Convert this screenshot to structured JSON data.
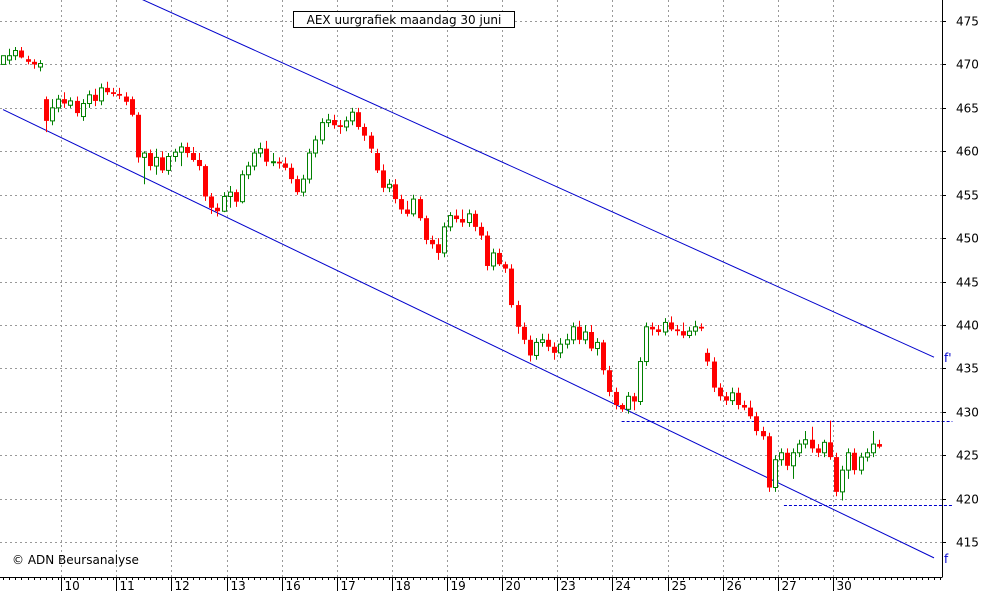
{
  "chart_data": {
    "type": "candlestick",
    "title": "AEX uurgrafiek maandag 30 juni",
    "copyright": "© ADN Beursanalyse",
    "ylim": [
      411,
      477
    ],
    "y_ticks": [
      415,
      420,
      425,
      430,
      435,
      440,
      445,
      450,
      455,
      460,
      465,
      470,
      475
    ],
    "x_ticks": [
      {
        "label": "10",
        "x": 9.5
      },
      {
        "label": "11",
        "x": 18.5
      },
      {
        "label": "12",
        "x": 27.5
      },
      {
        "label": "13",
        "x": 36.5
      },
      {
        "label": "16",
        "x": 45.5
      },
      {
        "label": "17",
        "x": 54.5
      },
      {
        "label": "18",
        "x": 63.5
      },
      {
        "label": "19",
        "x": 72.5
      },
      {
        "label": "20",
        "x": 81.5
      },
      {
        "label": "23",
        "x": 90.5
      },
      {
        "label": "24",
        "x": 99.5
      },
      {
        "label": "25",
        "x": 108.5
      },
      {
        "label": "26",
        "x": 117.5
      },
      {
        "label": "27",
        "x": 126.5
      },
      {
        "label": "30",
        "x": 135.5
      }
    ],
    "grid": true,
    "candles": [
      [
        470,
        471,
        470,
        471
      ],
      [
        470.5,
        471.8,
        470,
        471
      ],
      [
        471,
        472,
        470.5,
        471.6
      ],
      [
        471.6,
        472,
        470.7,
        470.8
      ],
      [
        470.6,
        471,
        470,
        470.3
      ],
      [
        470.3,
        470.6,
        469.5,
        470
      ],
      [
        469.7,
        470.5,
        469.2,
        470.1
      ],
      [
        466,
        466.3,
        462.2,
        463.5
      ],
      [
        463.5,
        466,
        463,
        465
      ],
      [
        465,
        466.5,
        464.5,
        466
      ],
      [
        466,
        466.8,
        465,
        465.5
      ],
      [
        465.3,
        466.2,
        465,
        465.8
      ],
      [
        465.8,
        466.3,
        464,
        464.4
      ],
      [
        464,
        466,
        463.5,
        465.5
      ],
      [
        465.5,
        467,
        465,
        466.5
      ],
      [
        466.5,
        467.2,
        465.2,
        465.8
      ],
      [
        465.8,
        467.8,
        465.3,
        467.3
      ],
      [
        467.3,
        468,
        466.5,
        466.8
      ],
      [
        466.8,
        467.3,
        466.3,
        466.6
      ],
      [
        466.6,
        467.3,
        466,
        466.4
      ],
      [
        466.3,
        466.8,
        465.3,
        465.7
      ],
      [
        466,
        466.3,
        464,
        464.2
      ],
      [
        464.2,
        464.5,
        458.7,
        459.3
      ],
      [
        459.3,
        460,
        456.2,
        459.8
      ],
      [
        459.8,
        460.2,
        457.8,
        458.3
      ],
      [
        458.3,
        460.3,
        457.3,
        459.3
      ],
      [
        459.3,
        460,
        457.5,
        457.8
      ],
      [
        457.8,
        459.8,
        457.3,
        459.4
      ],
      [
        459.4,
        460.3,
        458.8,
        459.9
      ],
      [
        459.9,
        461,
        458.3,
        460.5
      ],
      [
        460.5,
        461,
        459.3,
        459.8
      ],
      [
        459.8,
        460.5,
        458.8,
        459
      ],
      [
        459,
        459.8,
        457.8,
        458.3
      ],
      [
        458.3,
        458.5,
        454.3,
        454.8
      ],
      [
        454.8,
        455.2,
        452.8,
        453.5
      ],
      [
        453.5,
        454,
        452.5,
        453.1
      ],
      [
        453.1,
        455.3,
        453,
        454.8
      ],
      [
        454.8,
        456,
        453.5,
        455.3
      ],
      [
        455.3,
        455.6,
        453.6,
        454.2
      ],
      [
        454.2,
        457.8,
        454,
        457.3
      ],
      [
        457.3,
        458.8,
        456.8,
        458.3
      ],
      [
        458.3,
        460.3,
        457.8,
        459.8
      ],
      [
        459.8,
        461,
        459.3,
        460.3
      ],
      [
        460.3,
        461.2,
        458.3,
        458.8
      ],
      [
        458.8,
        459.8,
        458.3,
        458.8
      ],
      [
        458.8,
        459.3,
        458,
        458.6
      ],
      [
        458.6,
        459.3,
        457.8,
        458.1
      ],
      [
        458.1,
        458.6,
        456.3,
        456.8
      ],
      [
        456.8,
        457.2,
        455,
        455.3
      ],
      [
        455.3,
        457.3,
        454.8,
        456.8
      ],
      [
        456.8,
        460.3,
        456.3,
        459.8
      ],
      [
        459.8,
        461.8,
        459.3,
        461.3
      ],
      [
        461.3,
        463.8,
        460.8,
        463.3
      ],
      [
        463.3,
        464.3,
        462.8,
        463.6
      ],
      [
        463.6,
        464.2,
        462.6,
        463
      ],
      [
        463,
        463.6,
        462,
        462.8
      ],
      [
        462.8,
        464,
        462.3,
        463.5
      ],
      [
        463.5,
        465,
        463,
        464.5
      ],
      [
        464.5,
        465,
        462.5,
        462.8
      ],
      [
        462.8,
        463.2,
        461.2,
        461.8
      ],
      [
        461.8,
        462.2,
        459.8,
        460.3
      ],
      [
        459.8,
        460.3,
        457.5,
        457.8
      ],
      [
        457.8,
        458.5,
        455.3,
        455.8
      ],
      [
        455.8,
        456.8,
        455.3,
        456.2
      ],
      [
        456.2,
        456.8,
        454,
        454.5
      ],
      [
        454.5,
        455,
        452.8,
        453.3
      ],
      [
        453.3,
        454.3,
        452.5,
        452.8
      ],
      [
        452.8,
        455,
        452.5,
        454.5
      ],
      [
        454.5,
        454.8,
        452,
        452.3
      ],
      [
        452.3,
        452.6,
        449.3,
        449.8
      ],
      [
        449.8,
        450.3,
        448.8,
        449.3
      ],
      [
        449.3,
        450,
        447.5,
        448.3
      ],
      [
        448.3,
        451.8,
        447.8,
        451.3
      ],
      [
        451.3,
        453,
        450.8,
        452.6
      ],
      [
        452.6,
        453.3,
        451.8,
        452.2
      ],
      [
        452.2,
        453.3,
        451.3,
        451.8
      ],
      [
        451.8,
        453.3,
        451.3,
        452.8
      ],
      [
        452.8,
        453.2,
        450.8,
        451.3
      ],
      [
        451.3,
        451.8,
        449.8,
        450.3
      ],
      [
        450.3,
        450.8,
        446.3,
        446.8
      ],
      [
        446.8,
        448.8,
        446.3,
        448.3
      ],
      [
        448.3,
        448.8,
        446.8,
        447
      ],
      [
        447,
        447.3,
        446,
        446.5
      ],
      [
        446.5,
        447,
        442,
        442.3
      ],
      [
        442.3,
        442.8,
        439,
        439.8
      ],
      [
        439.8,
        440.3,
        437.8,
        438.3
      ],
      [
        438.3,
        438.8,
        435.8,
        436.5
      ],
      [
        436.5,
        438.5,
        436,
        438
      ],
      [
        438,
        439,
        437.5,
        438.3
      ],
      [
        438.3,
        439,
        437,
        437.5
      ],
      [
        437.5,
        438,
        436,
        436.8
      ],
      [
        436.8,
        438.5,
        436.2,
        437.8
      ],
      [
        437.8,
        439,
        437.3,
        438.3
      ],
      [
        438.3,
        440.3,
        437.8,
        439.8
      ],
      [
        439.8,
        440.5,
        437.8,
        438.3
      ],
      [
        438.3,
        440,
        437.8,
        439.2
      ],
      [
        439.2,
        440,
        437,
        437.3
      ],
      [
        437.3,
        438.5,
        436.5,
        438
      ],
      [
        438,
        438.3,
        434.3,
        434.8
      ],
      [
        434.8,
        435.3,
        431.8,
        432.3
      ],
      [
        432.3,
        432.8,
        430.3,
        430.8
      ],
      [
        430.8,
        431,
        430,
        430.3
      ],
      [
        430.3,
        432.3,
        429.8,
        431.8
      ],
      [
        431.8,
        432.2,
        430.2,
        431.2
      ],
      [
        431.2,
        436.3,
        430.8,
        435.8
      ],
      [
        435.8,
        440.3,
        435.3,
        439.8
      ],
      [
        439.8,
        440.3,
        438.8,
        439.5
      ],
      [
        439.5,
        440,
        438.8,
        439.2
      ],
      [
        439.2,
        440.8,
        438.8,
        440.3
      ],
      [
        440.3,
        441,
        439.3,
        439.5
      ],
      [
        439.5,
        440,
        438.8,
        439.3
      ],
      [
        439.3,
        440.3,
        438.5,
        438.8
      ],
      [
        438.8,
        439.8,
        438.5,
        439.3
      ],
      [
        439.3,
        440.5,
        438.8,
        439.8
      ],
      [
        439.8,
        440.2,
        439.3,
        439.6
      ],
      [
        436.8,
        437.3,
        435.3,
        435.8
      ],
      [
        435.8,
        436.3,
        432.3,
        432.8
      ],
      [
        432.8,
        433.3,
        431.3,
        431.8
      ],
      [
        431.8,
        432.3,
        430.8,
        431.3
      ],
      [
        431.3,
        432.8,
        430.8,
        432.2
      ],
      [
        432.2,
        432.8,
        430.3,
        430.8
      ],
      [
        430.8,
        431.3,
        430.2,
        430.5
      ],
      [
        430.5,
        431.3,
        429.2,
        429.5
      ],
      [
        429.5,
        430,
        427.3,
        427.8
      ],
      [
        427.8,
        428.3,
        426.8,
        427.2
      ],
      [
        427.2,
        427.6,
        420.8,
        421.3
      ],
      [
        421.3,
        425,
        420.8,
        424.5
      ],
      [
        424.5,
        425.8,
        423.8,
        425.3
      ],
      [
        425.3,
        425.8,
        423.3,
        423.8
      ],
      [
        423.8,
        425.8,
        422.3,
        425.3
      ],
      [
        425.3,
        426.8,
        424.8,
        426.3
      ],
      [
        426.3,
        427.8,
        425.8,
        426.8
      ],
      [
        426.8,
        428.3,
        425.3,
        425.8
      ],
      [
        425.8,
        426.3,
        424.8,
        425.3
      ],
      [
        425.3,
        426.8,
        424.8,
        426.5
      ],
      [
        426.5,
        429,
        424.5,
        424.8
      ],
      [
        424.8,
        425.3,
        420.3,
        420.8
      ],
      [
        420.8,
        423.8,
        419.8,
        423.3
      ],
      [
        423.3,
        425.8,
        422.3,
        425.3
      ],
      [
        425.3,
        425.8,
        422.8,
        423.3
      ],
      [
        423.3,
        425.3,
        422.8,
        424.8
      ],
      [
        424.8,
        425.8,
        424.3,
        425.3
      ],
      [
        425.3,
        427.8,
        424.8,
        426.3
      ],
      [
        426.3,
        426.8,
        425.8,
        426
      ]
    ],
    "trend_lines": [
      {
        "label": "f'",
        "from": [
          6,
          482.8
        ],
        "to": [
          152,
          436.3
        ]
      },
      {
        "label": "f",
        "from": [
          0,
          464.8
        ],
        "to": [
          152,
          413.2
        ]
      }
    ],
    "horizontal_levels": [
      {
        "y": 428.9,
        "from": 101,
        "to": 155
      },
      {
        "y": 419.3,
        "from": 127.5,
        "to": 155
      }
    ],
    "colors": {
      "up": "#008000",
      "down": "#ff0000",
      "trend": "#0000cc",
      "grid": "#999999",
      "axis": "#000000"
    }
  }
}
